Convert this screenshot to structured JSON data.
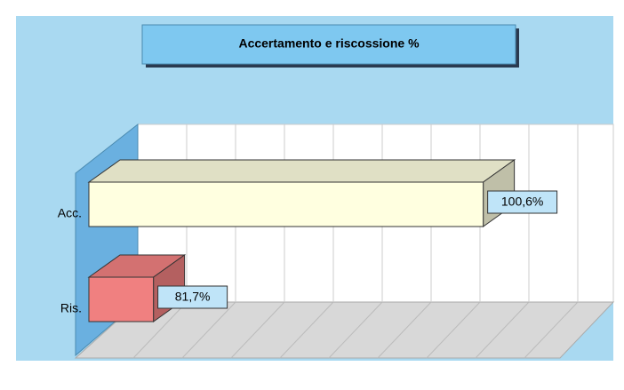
{
  "chart_data": {
    "type": "bar3d",
    "orientation": "horizontal",
    "title": "Accertamento e riscossione %",
    "categories": [
      "Acc.",
      "Ris."
    ],
    "values": [
      100.6,
      81.7
    ],
    "value_labels": [
      "100,6%",
      "81,7%"
    ],
    "colors": [
      "#ffffe0",
      "#f08080"
    ],
    "xlim": [
      78,
      105
    ],
    "grid": true
  }
}
